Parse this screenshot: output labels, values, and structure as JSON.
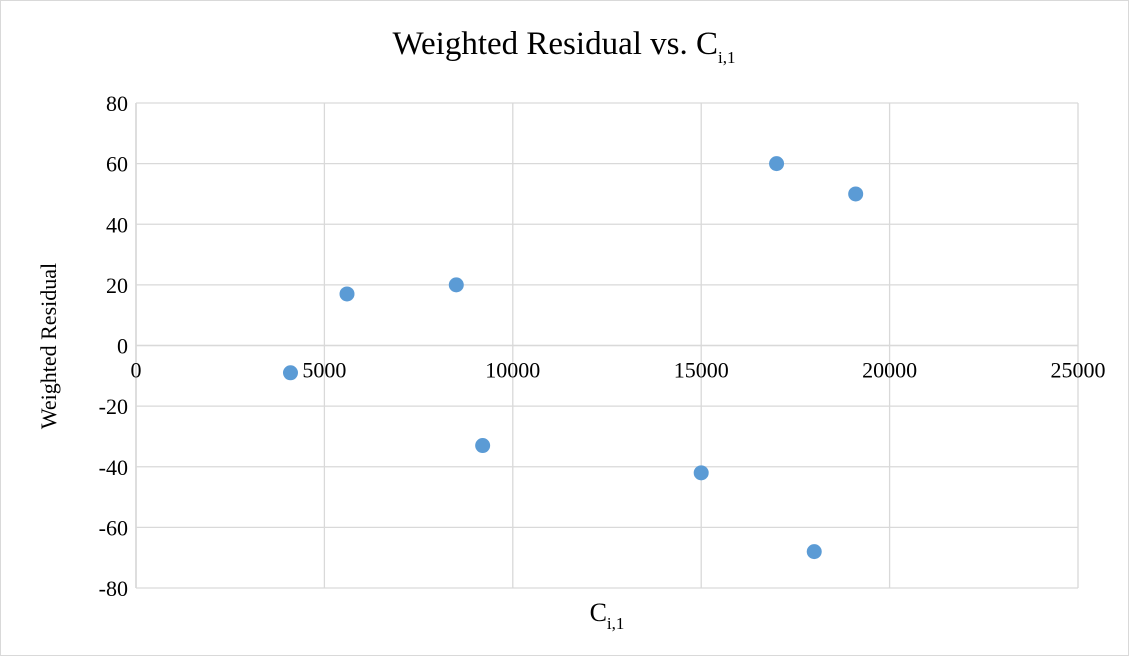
{
  "chart_data": {
    "type": "scatter",
    "title": "Weighted Residual vs. C",
    "title_subscript": "i,1",
    "xlabel": "C",
    "xlabel_subscript": "i,1",
    "ylabel": "Weighted Residual",
    "xlim": [
      0,
      25000
    ],
    "ylim": [
      -80,
      80
    ],
    "x_ticks": [
      0,
      5000,
      10000,
      15000,
      20000,
      25000
    ],
    "y_ticks": [
      -80,
      -60,
      -40,
      -20,
      0,
      20,
      40,
      60,
      80
    ],
    "grid": true,
    "legend": "none",
    "marker_color": "#5b9bd5",
    "grid_color": "#d9d9d9",
    "points": [
      {
        "x": 4100,
        "y": -9
      },
      {
        "x": 5600,
        "y": 17
      },
      {
        "x": 8500,
        "y": 20
      },
      {
        "x": 9200,
        "y": -33
      },
      {
        "x": 15000,
        "y": -42
      },
      {
        "x": 17000,
        "y": 60
      },
      {
        "x": 18000,
        "y": -68
      },
      {
        "x": 19100,
        "y": 50
      }
    ]
  }
}
